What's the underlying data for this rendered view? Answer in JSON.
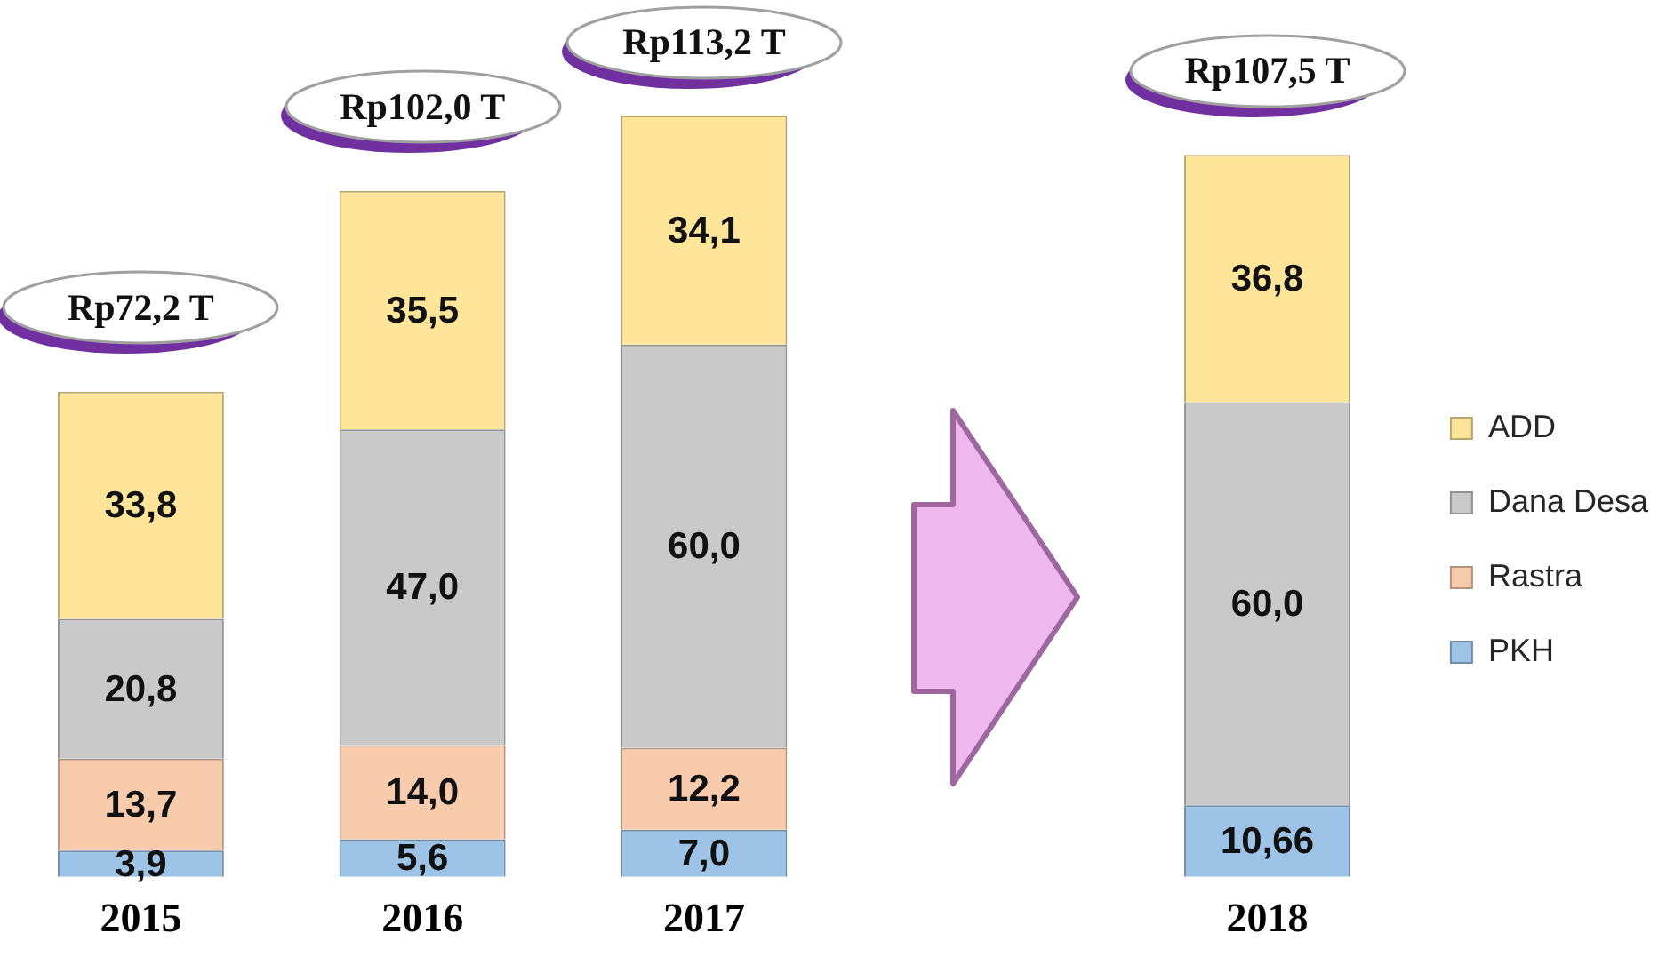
{
  "chart_data": {
    "type": "bar",
    "stacked": true,
    "legend": "right",
    "categories": [
      "2015",
      "2016",
      "2017",
      null,
      "2018"
    ],
    "series": [
      {
        "name": "PKH",
        "color": "#9dc3e6",
        "values": [
          3.9,
          5.6,
          7.0,
          null,
          10.66
        ],
        "value_labels": [
          "3,9",
          "5,6",
          "7,0",
          null,
          "10,66"
        ]
      },
      {
        "name": "Rastra",
        "color": "#f8cbad",
        "values": [
          13.7,
          14.0,
          12.2,
          null,
          null
        ],
        "value_labels": [
          "13,7",
          "14,0",
          "12,2",
          null,
          null
        ]
      },
      {
        "name": "Dana Desa",
        "color": "#c9c9c9",
        "values": [
          20.8,
          47.0,
          60.0,
          null,
          60.0
        ],
        "value_labels": [
          "20,8",
          "47,0",
          "60,0",
          null,
          "60,0"
        ]
      },
      {
        "name": "ADD",
        "color": "#fee599",
        "values": [
          33.8,
          35.5,
          34.1,
          null,
          36.8
        ],
        "value_labels": [
          "33,8",
          "35,5",
          "34,1",
          null,
          "36,8"
        ]
      }
    ],
    "totals": [
      "Rp72,2 T",
      "Rp102,0 T",
      "Rp113,2 T",
      null,
      "Rp107,5 T"
    ]
  }
}
